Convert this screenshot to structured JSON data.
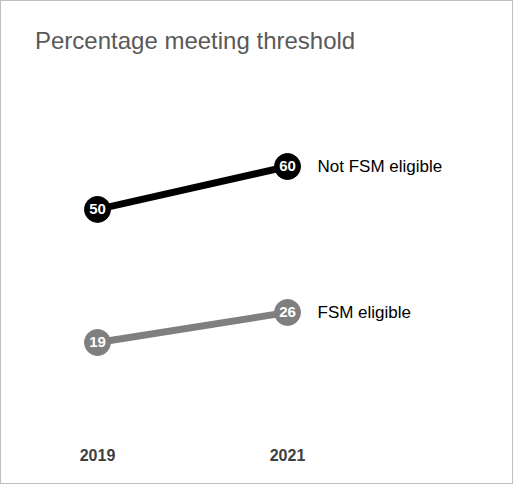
{
  "chart_data": {
    "type": "line",
    "title": "Percentage meeting threshold",
    "categories": [
      "2019",
      "2021"
    ],
    "series": [
      {
        "name": "Not FSM eligible",
        "color": "#000000",
        "values": [
          50,
          60
        ]
      },
      {
        "name": "FSM eligible",
        "color": "#7f7f7f",
        "values": [
          19,
          26
        ]
      }
    ],
    "data_labels": true,
    "marker": "circle",
    "tick_labels": "x",
    "grid": false
  }
}
